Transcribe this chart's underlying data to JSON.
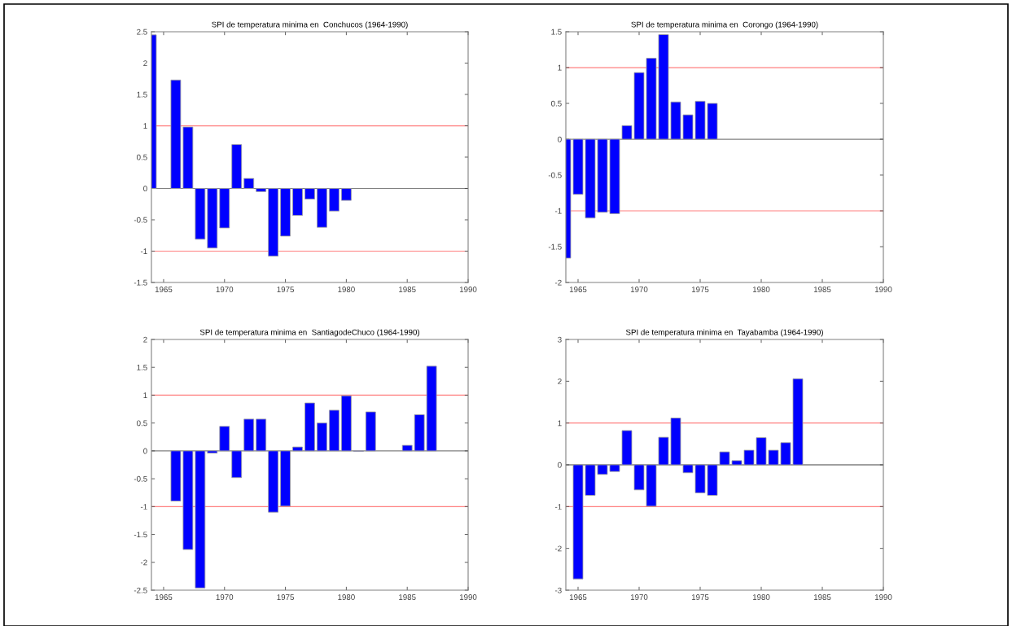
{
  "chart_data": [
    {
      "type": "bar",
      "title": "SPI de temperatura minima en  Conchucos (1964-1990)",
      "x": [
        1964,
        1965,
        1966,
        1967,
        1968,
        1969,
        1970,
        1971,
        1972,
        1973,
        1974,
        1975,
        1976,
        1977,
        1978,
        1979,
        1980
      ],
      "series": [
        {
          "color": "#0000ff",
          "values": [
            2.45,
            null,
            1.73,
            0.98,
            -0.81,
            -0.95,
            -0.63,
            0.7,
            0.16,
            -0.05,
            -1.08,
            -0.76,
            -0.43,
            -0.17,
            -0.62,
            -0.36,
            -0.19
          ]
        }
      ],
      "xlim": [
        1964,
        1990
      ],
      "xticks": [
        1965,
        1970,
        1975,
        1980,
        1985,
        1990
      ],
      "ylim": [
        -1.5,
        2.5
      ],
      "yticks": [
        -1.5,
        -1,
        -0.5,
        0,
        0.5,
        1,
        1.5,
        2,
        2.5
      ],
      "grid": false,
      "legend": false,
      "ref_lines": [
        {
          "axis": "y",
          "value": 1,
          "color": "#ff8080"
        },
        {
          "axis": "y",
          "value": -1,
          "color": "#ff8080"
        },
        {
          "axis": "y",
          "value": 0,
          "color": "#808080"
        }
      ]
    },
    {
      "type": "bar",
      "title": "SPI de temperatura minima en  Corongo (1964-1990)",
      "x": [
        1964,
        1965,
        1966,
        1967,
        1968,
        1969,
        1970,
        1971,
        1972,
        1973,
        1974,
        1975,
        1976
      ],
      "series": [
        {
          "color": "#0000ff",
          "values": [
            -1.66,
            -0.77,
            -1.1,
            -1.02,
            -1.04,
            0.19,
            0.93,
            1.13,
            1.46,
            0.52,
            0.34,
            0.53,
            0.5
          ]
        }
      ],
      "xlim": [
        1964,
        1990
      ],
      "xticks": [
        1965,
        1970,
        1975,
        1980,
        1985,
        1990
      ],
      "ylim": [
        -2,
        1.5
      ],
      "yticks": [
        -2,
        -1.5,
        -1,
        -0.5,
        0,
        0.5,
        1,
        1.5
      ],
      "grid": false,
      "legend": false,
      "ref_lines": [
        {
          "axis": "y",
          "value": 1,
          "color": "#ff8080"
        },
        {
          "axis": "y",
          "value": -1,
          "color": "#ff8080"
        },
        {
          "axis": "y",
          "value": 0,
          "color": "#808080"
        }
      ]
    },
    {
      "type": "bar",
      "title": "SPI de temperatura minima en  SantiagodeChuco (1964-1990)",
      "x": [
        1966,
        1967,
        1968,
        1969,
        1970,
        1971,
        1972,
        1973,
        1974,
        1975,
        1976,
        1977,
        1978,
        1979,
        1980,
        1981,
        1982,
        1983,
        1984,
        1985,
        1986,
        1987
      ],
      "series": [
        {
          "color": "#0000ff",
          "values": [
            -0.9,
            -1.77,
            -2.46,
            -0.04,
            0.44,
            -0.48,
            0.57,
            0.57,
            -1.1,
            -0.99,
            0.07,
            0.86,
            0.5,
            0.73,
            0.99,
            -0.01,
            0.7,
            null,
            null,
            0.1,
            0.65,
            1.52
          ]
        }
      ],
      "xlim": [
        1964,
        1990
      ],
      "xticks": [
        1965,
        1970,
        1975,
        1980,
        1985,
        1990
      ],
      "ylim": [
        -2.5,
        2
      ],
      "yticks": [
        -2.5,
        -2,
        -1.5,
        -1,
        -0.5,
        0,
        0.5,
        1,
        1.5,
        2
      ],
      "grid": false,
      "legend": false,
      "ref_lines": [
        {
          "axis": "y",
          "value": 1,
          "color": "#ff8080"
        },
        {
          "axis": "y",
          "value": -1,
          "color": "#ff8080"
        },
        {
          "axis": "y",
          "value": 0,
          "color": "#808080"
        }
      ]
    },
    {
      "type": "bar",
      "title": "SPI de temperatura minima en  Tayabamba (1964-1990)",
      "x": [
        1965,
        1966,
        1967,
        1968,
        1969,
        1970,
        1971,
        1972,
        1973,
        1974,
        1975,
        1976,
        1977,
        1978,
        1979,
        1980,
        1981,
        1982,
        1983
      ],
      "series": [
        {
          "color": "#0000ff",
          "values": [
            -2.73,
            -0.73,
            -0.23,
            -0.16,
            0.82,
            -0.6,
            -0.99,
            0.66,
            1.12,
            -0.19,
            -0.67,
            -0.73,
            0.31,
            0.1,
            0.35,
            0.65,
            0.35,
            0.53,
            2.06
          ]
        }
      ],
      "xlim": [
        1964,
        1990
      ],
      "xticks": [
        1965,
        1970,
        1975,
        1980,
        1985,
        1990
      ],
      "ylim": [
        -3,
        3
      ],
      "yticks": [
        -3,
        -2,
        -1,
        0,
        1,
        2,
        3
      ],
      "grid": false,
      "legend": false,
      "ref_lines": [
        {
          "axis": "y",
          "value": 1,
          "color": "#ff8080"
        },
        {
          "axis": "y",
          "value": -1,
          "color": "#ff8080"
        },
        {
          "axis": "y",
          "value": 0,
          "color": "#808080"
        }
      ]
    }
  ]
}
